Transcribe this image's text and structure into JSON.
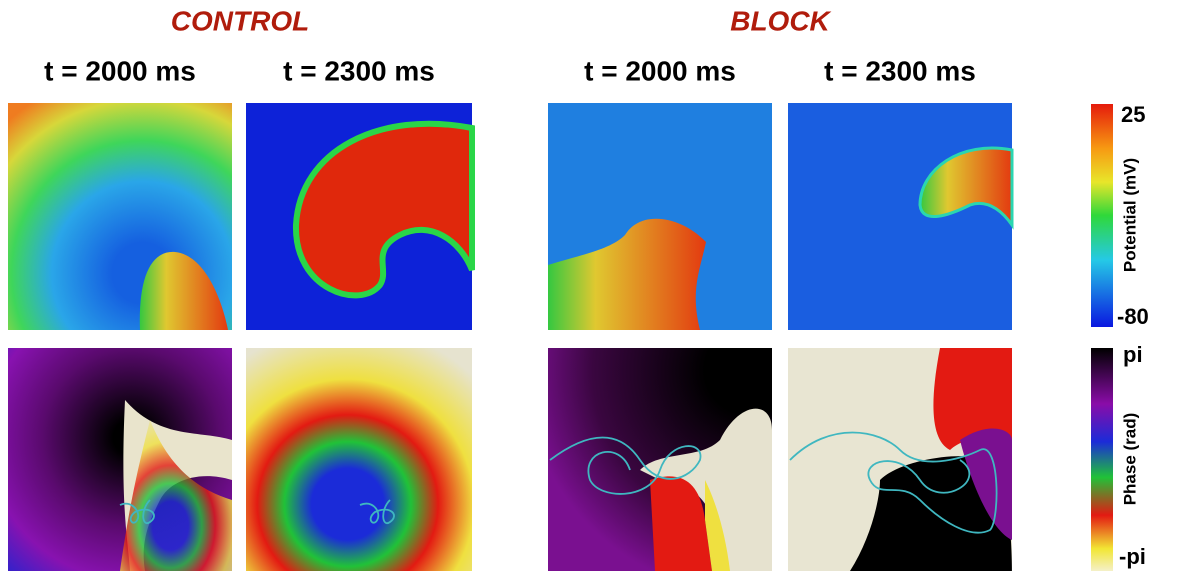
{
  "groups": [
    {
      "title": "CONTROL",
      "times": [
        "t = 2000 ms",
        "t = 2300 ms"
      ]
    },
    {
      "title": "BLOCK",
      "times": [
        "t = 2000 ms",
        "t = 2300 ms"
      ]
    }
  ],
  "colorbars": [
    {
      "label": "Potential (mV)",
      "max": 25,
      "min": -80
    },
    {
      "label": "Phase (rad)",
      "max": "pi",
      "min": "-pi"
    }
  ]
}
